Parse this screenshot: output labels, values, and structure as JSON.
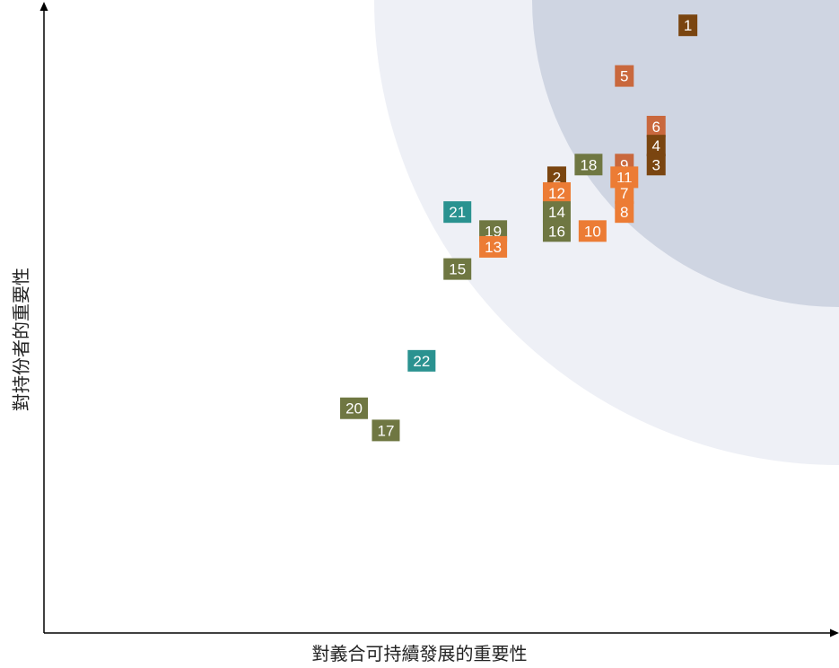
{
  "chart_data": {
    "type": "scatter",
    "xlabel": "對義合可持續發展的重要性",
    "ylabel": "對持份者的重要性",
    "grid": false,
    "legend": "none",
    "zones": [
      {
        "name": "outer-zone",
        "color": "#eef0f6"
      },
      {
        "name": "inner-zone",
        "color": "#cfd5e2"
      }
    ],
    "colors": {
      "dark_brown": "#7a4510",
      "rust": "#c9683d",
      "orange": "#ec7c35",
      "olive": "#6f7742",
      "teal": "#2a9290"
    },
    "points": [
      {
        "label": "1",
        "x": 8.1,
        "y": 9.6,
        "color": "#7a4510"
      },
      {
        "label": "5",
        "x": 7.3,
        "y": 8.8,
        "color": "#c9683d"
      },
      {
        "label": "6",
        "x": 7.7,
        "y": 8.0,
        "color": "#c9683d"
      },
      {
        "label": "4",
        "x": 7.7,
        "y": 7.7,
        "color": "#7a4510"
      },
      {
        "label": "3",
        "x": 7.7,
        "y": 7.4,
        "color": "#7a4510"
      },
      {
        "label": "9",
        "x": 7.3,
        "y": 7.4,
        "color": "#c9683d"
      },
      {
        "label": "18",
        "x": 6.85,
        "y": 7.4,
        "color": "#6f7742"
      },
      {
        "label": "11",
        "x": 7.3,
        "y": 7.2,
        "color": "#ec7c35"
      },
      {
        "label": "2",
        "x": 6.45,
        "y": 7.2,
        "color": "#7a4510"
      },
      {
        "label": "12",
        "x": 6.45,
        "y": 6.95,
        "color": "#ec7c35"
      },
      {
        "label": "7",
        "x": 7.3,
        "y": 6.95,
        "color": "#ec7c35"
      },
      {
        "label": "14",
        "x": 6.45,
        "y": 6.65,
        "color": "#6f7742"
      },
      {
        "label": "8",
        "x": 7.3,
        "y": 6.65,
        "color": "#ec7c35"
      },
      {
        "label": "21",
        "x": 5.2,
        "y": 6.65,
        "color": "#2a9290"
      },
      {
        "label": "16",
        "x": 6.45,
        "y": 6.35,
        "color": "#6f7742"
      },
      {
        "label": "10",
        "x": 6.9,
        "y": 6.35,
        "color": "#ec7c35"
      },
      {
        "label": "19",
        "x": 5.65,
        "y": 6.35,
        "color": "#6f7742"
      },
      {
        "label": "13",
        "x": 5.65,
        "y": 6.1,
        "color": "#ec7c35"
      },
      {
        "label": "15",
        "x": 5.2,
        "y": 5.75,
        "color": "#6f7742"
      },
      {
        "label": "22",
        "x": 4.75,
        "y": 4.3,
        "color": "#2a9290"
      },
      {
        "label": "20",
        "x": 3.9,
        "y": 3.55,
        "color": "#6f7742"
      },
      {
        "label": "17",
        "x": 4.3,
        "y": 3.2,
        "color": "#6f7742"
      }
    ]
  }
}
